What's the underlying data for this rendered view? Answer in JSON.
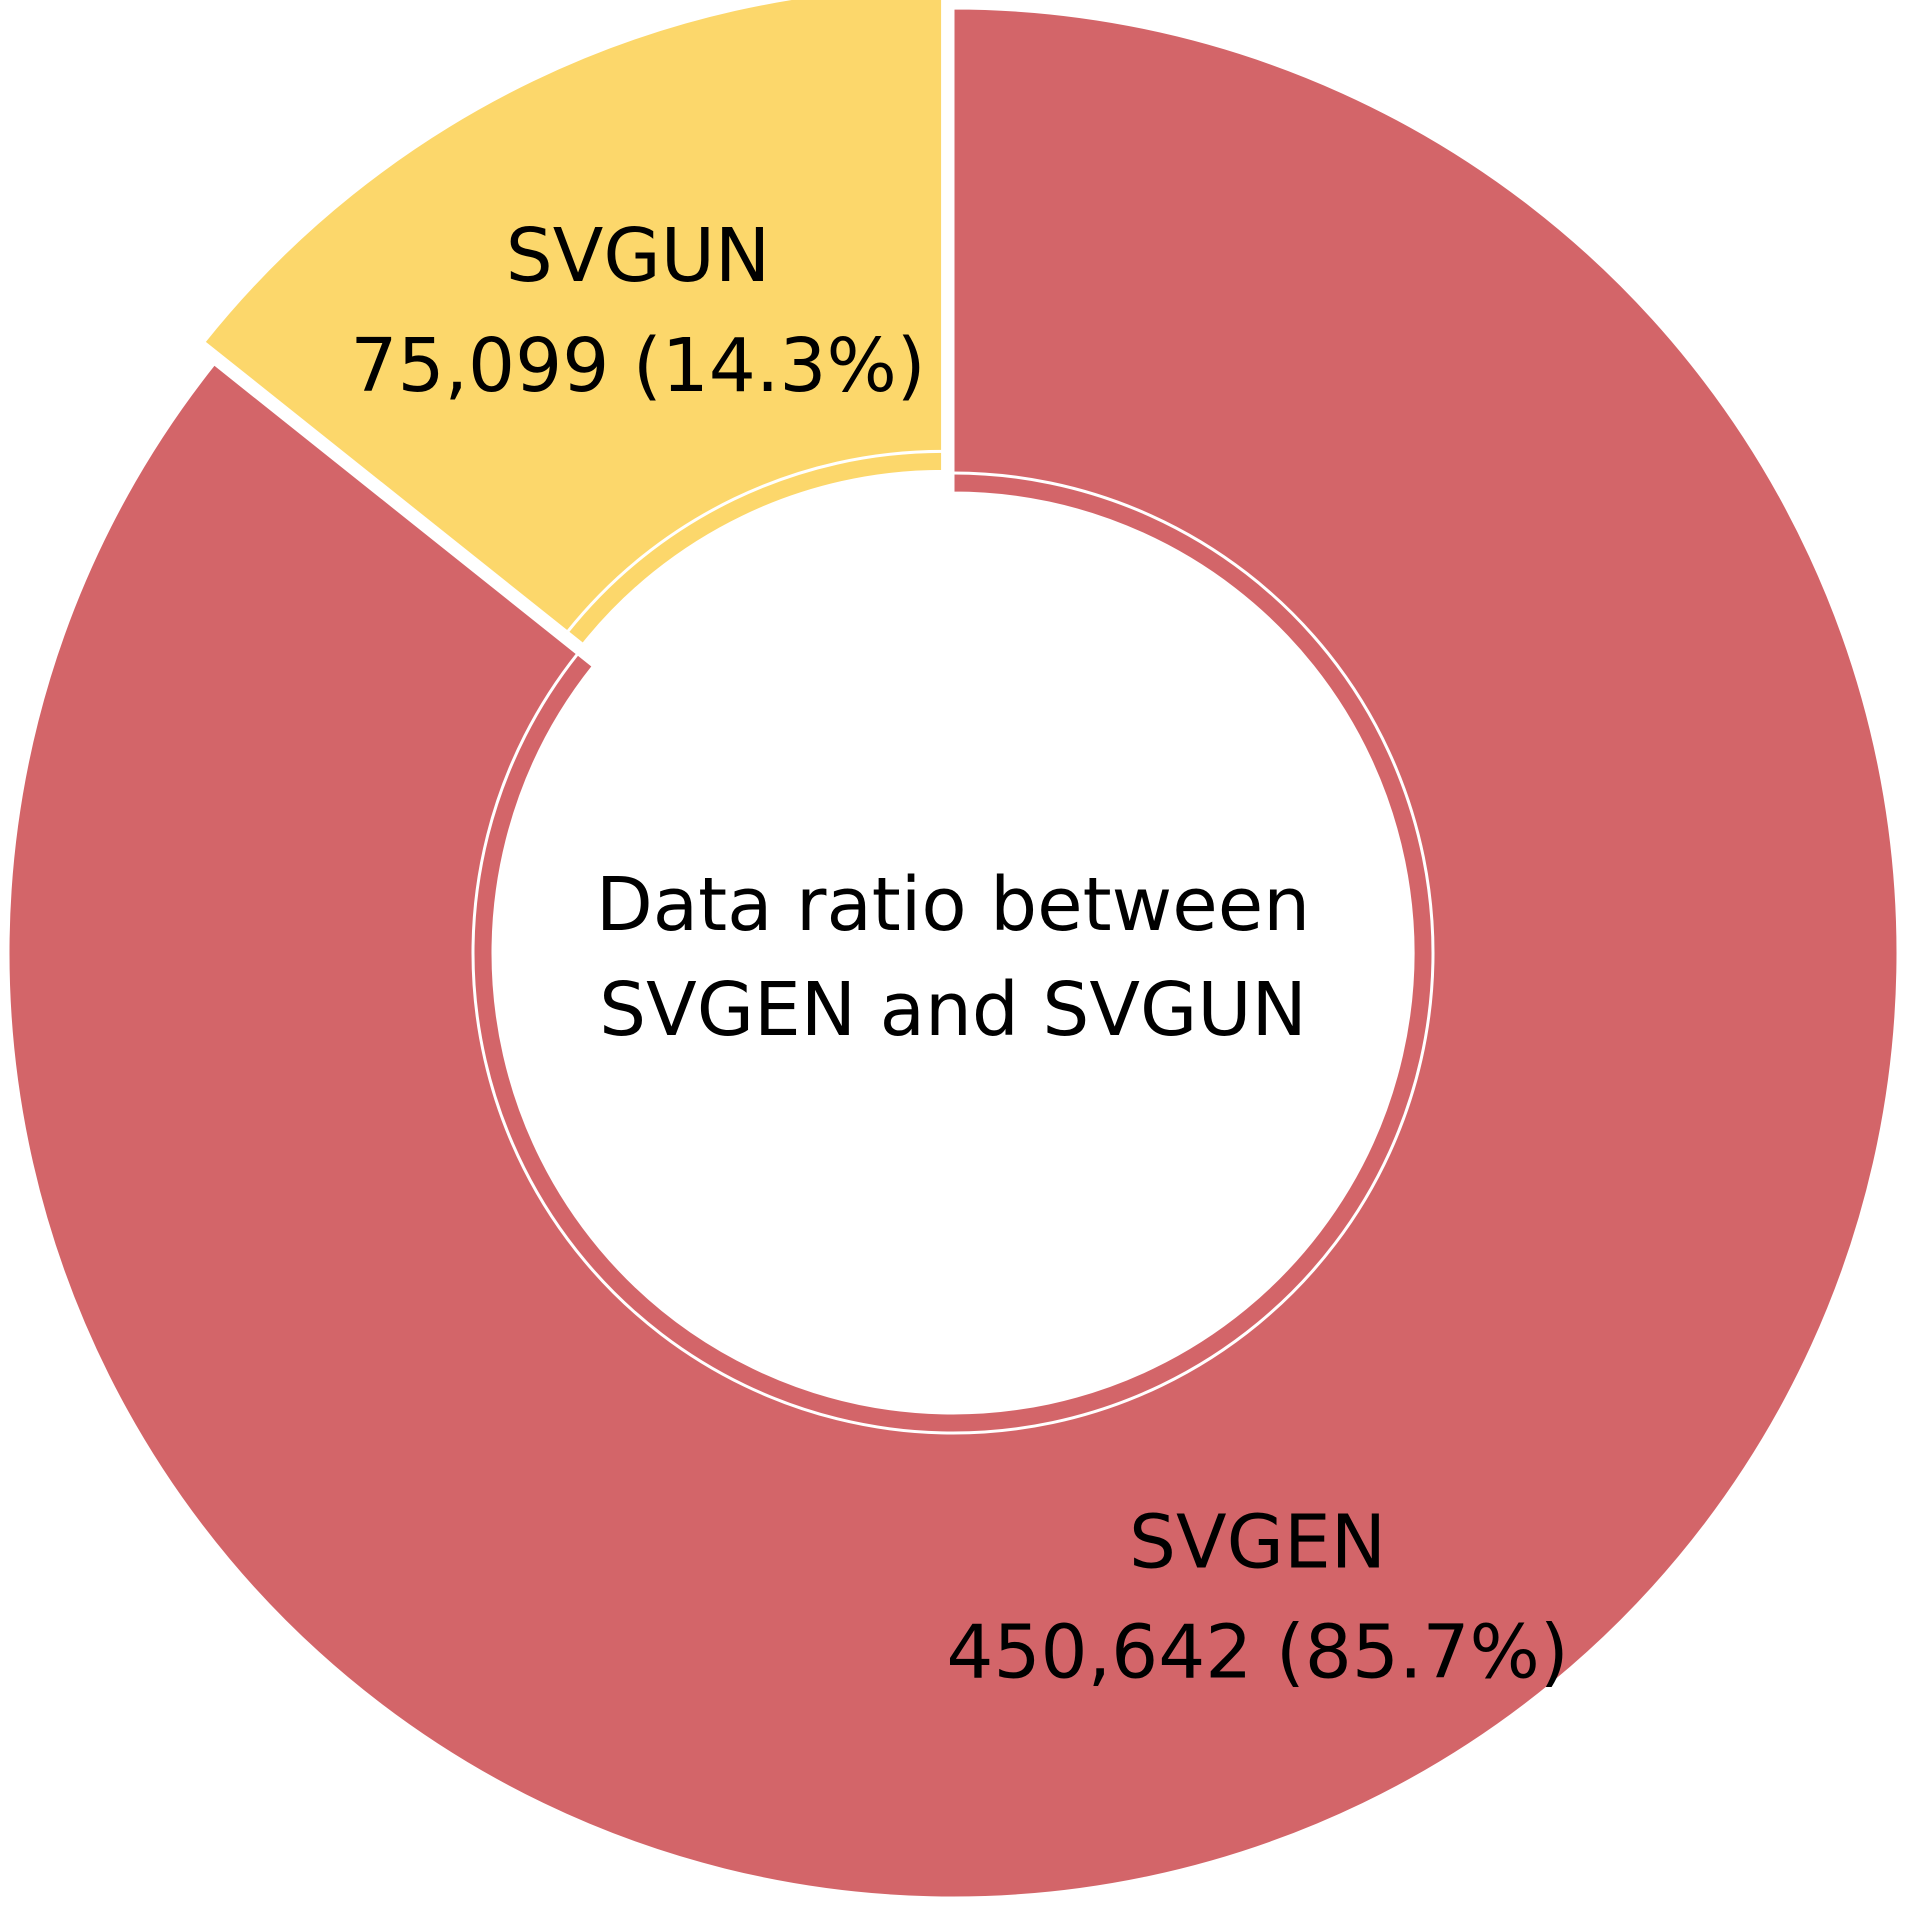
{
  "chart_data": {
    "type": "pie",
    "title": "Data ratio between SVGEN and SVGUN",
    "title_lines": [
      "Data ratio between",
      "SVGEN and SVGUN"
    ],
    "slices": [
      {
        "label": "SVGEN",
        "value": 450642,
        "percent": 85.7,
        "value_text": "450,642 (85.7%)",
        "color": "#d36569"
      },
      {
        "label": "SVGUN",
        "value": 75099,
        "percent": 14.3,
        "value_text": "75,099 (14.3%)",
        "color": "#fcd76b"
      }
    ]
  }
}
